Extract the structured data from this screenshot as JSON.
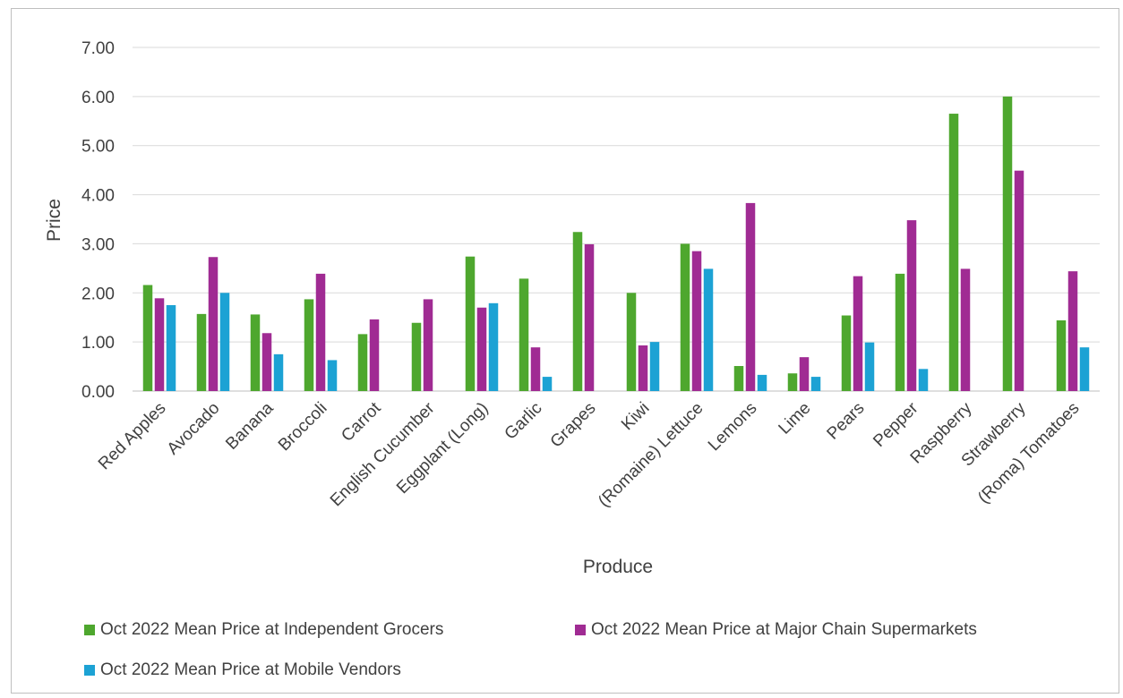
{
  "chart_data": {
    "type": "bar",
    "xlabel": "Produce",
    "ylabel": "Price",
    "ylim": [
      0,
      7
    ],
    "yticks": [
      "0.00",
      "1.00",
      "2.00",
      "3.00",
      "4.00",
      "5.00",
      "6.00",
      "7.00"
    ],
    "grid": true,
    "legend_position": "bottom",
    "categories": [
      "Red Apples",
      "Avocado",
      "Banana",
      "Broccoli",
      "Carrot",
      "English Cucumber",
      "Eggplant (Long)",
      "Garlic",
      "Grapes",
      "Kiwi",
      "(Romaine) Lettuce",
      "Lemons",
      "Lime",
      "Pears",
      "Pepper",
      "Raspberry",
      "Strawberry",
      "(Roma) Tomatoes"
    ],
    "series": [
      {
        "name": "Oct 2022 Mean Price at Independent Grocers",
        "color": "#4ea72e",
        "values": [
          2.16,
          1.57,
          1.56,
          1.87,
          1.16,
          1.39,
          2.74,
          2.29,
          3.24,
          2.0,
          3.0,
          0.51,
          0.36,
          1.54,
          2.39,
          5.65,
          6.0,
          1.44
        ]
      },
      {
        "name": "Oct 2022 Mean Price at Major Chain Supermarkets",
        "color": "#a02b93",
        "values": [
          1.89,
          2.73,
          1.18,
          2.39,
          1.46,
          1.87,
          1.7,
          0.89,
          2.99,
          0.93,
          2.85,
          3.83,
          0.69,
          2.34,
          3.48,
          2.49,
          4.49,
          2.44
        ]
      },
      {
        "name": "Oct 2022 Mean Price at Mobile Vendors",
        "color": "#1ca2d4",
        "values": [
          1.75,
          2.0,
          0.75,
          0.63,
          null,
          null,
          1.79,
          0.29,
          null,
          1.0,
          2.49,
          0.33,
          0.29,
          0.99,
          0.45,
          null,
          null,
          0.89
        ]
      }
    ]
  }
}
